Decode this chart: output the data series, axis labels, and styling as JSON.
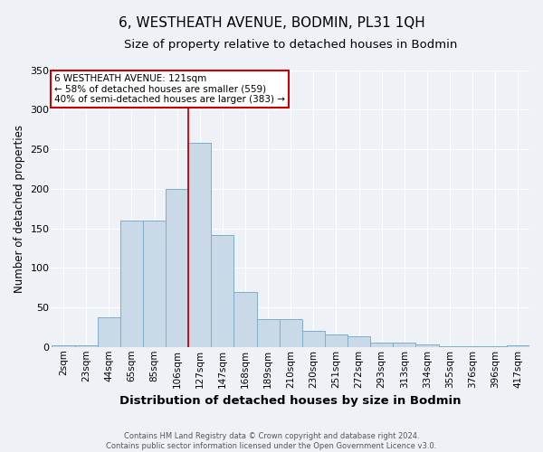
{
  "title": "6, WESTHEATH AVENUE, BODMIN, PL31 1QH",
  "subtitle": "Size of property relative to detached houses in Bodmin",
  "xlabel": "Distribution of detached houses by size in Bodmin",
  "ylabel": "Number of detached properties",
  "categories": [
    "2sqm",
    "23sqm",
    "44sqm",
    "65sqm",
    "85sqm",
    "106sqm",
    "127sqm",
    "147sqm",
    "168sqm",
    "189sqm",
    "210sqm",
    "230sqm",
    "251sqm",
    "272sqm",
    "293sqm",
    "313sqm",
    "334sqm",
    "355sqm",
    "376sqm",
    "396sqm",
    "417sqm"
  ],
  "values": [
    2,
    2,
    38,
    160,
    160,
    200,
    258,
    142,
    70,
    35,
    35,
    20,
    16,
    13,
    5,
    5,
    3,
    1,
    1,
    1,
    2
  ],
  "bar_color": "#c9d9e8",
  "bar_edge_color": "#7aaec8",
  "annotation_marker": "6 WESTHEATH AVENUE: 121sqm",
  "annotation_line1": "← 58% of detached houses are smaller (559)",
  "annotation_line2": "40% of semi-detached houses are larger (383) →",
  "vline_color": "#cc0000",
  "annotation_box_facecolor": "#ffffff",
  "annotation_box_edgecolor": "#cc0000",
  "footer_line1": "Contains HM Land Registry data © Crown copyright and database right 2024.",
  "footer_line2": "Contains public sector information licensed under the Open Government Licence v3.0.",
  "background_color": "#eef2f7",
  "plot_background": "#eef2f7",
  "ylim": [
    0,
    350
  ],
  "yticks": [
    0,
    50,
    100,
    150,
    200,
    250,
    300,
    350
  ],
  "title_fontsize": 11,
  "subtitle_fontsize": 9.5,
  "tick_fontsize": 7.5,
  "ylabel_fontsize": 8.5,
  "xlabel_fontsize": 9.5,
  "footer_fontsize": 6.0,
  "annotation_fontsize": 7.5
}
